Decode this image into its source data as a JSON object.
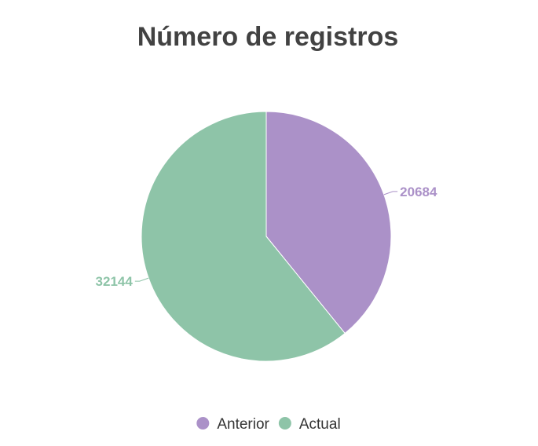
{
  "chart_data": {
    "type": "pie",
    "title": "Número de registros",
    "categories": [
      "Anterior",
      "Actual"
    ],
    "values": [
      20684,
      32144
    ],
    "colors": [
      "#ab91c8",
      "#8ec4a8"
    ],
    "data_labels": [
      "20684",
      "32144"
    ],
    "legend_position": "bottom",
    "start_angle_deg": 0,
    "direction": "clockwise"
  }
}
